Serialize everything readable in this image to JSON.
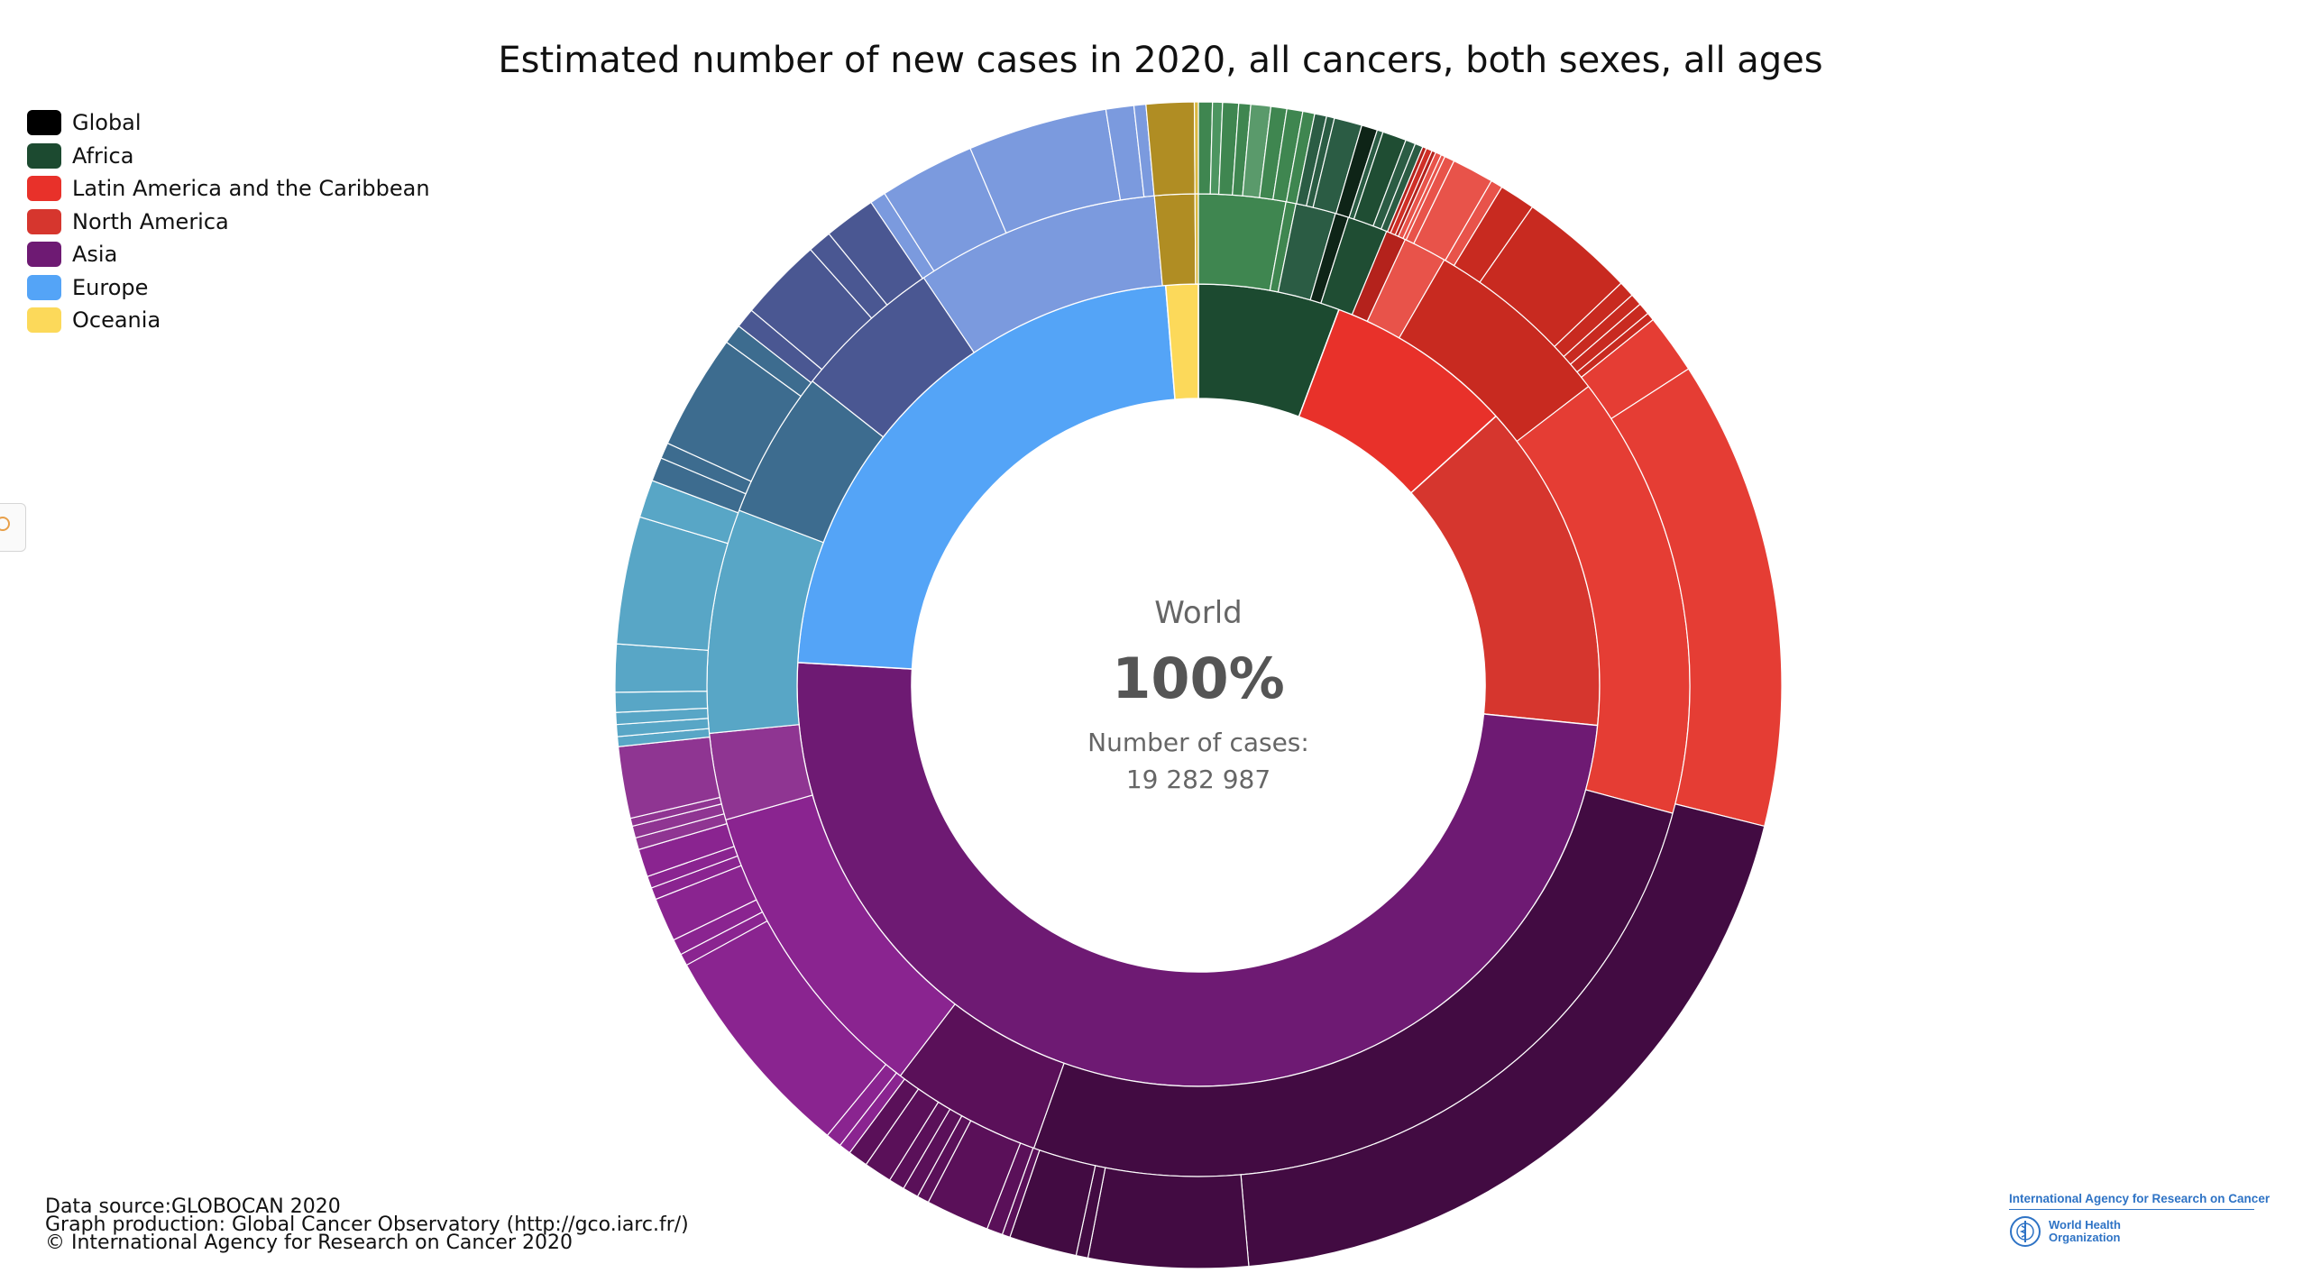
{
  "title": "Estimated number of new cases in 2020, all cancers, both sexes, all ages",
  "legend": [
    {
      "label": "Global",
      "color": "#000000"
    },
    {
      "label": "Africa",
      "color": "#1c4a30"
    },
    {
      "label": "Latin America and the Caribbean",
      "color": "#e8312a"
    },
    {
      "label": "North America",
      "color": "#d6362e"
    },
    {
      "label": "Asia",
      "color": "#6e1a73"
    },
    {
      "label": "Europe",
      "color": "#54a4f7"
    },
    {
      "label": "Oceania",
      "color": "#fcd95a"
    }
  ],
  "center": {
    "label": "World",
    "percent": "100%",
    "cases_label": "Number of cases:",
    "cases_value": "19 282 987"
  },
  "credits": {
    "line1": "Data source:GLOBOCAN 2020",
    "line2": "Graph production: Global Cancer Observatory (http://gco.iarc.fr/)",
    "line3": "© International Agency for Research on Cancer 2020"
  },
  "logos": {
    "iarc": "International Agency for Research on Cancer",
    "who_line1": "World Health",
    "who_line2": "Organization"
  },
  "icons": {
    "side_tab": "expand-icon",
    "who": "who-emblem-icon"
  },
  "chart_data": {
    "type": "sunburst",
    "title": "Estimated number of new cases in 2020, all cancers, both sexes, all ages",
    "root": {
      "name": "World",
      "percent": 100,
      "cases": 19282987
    },
    "rings": [
      {
        "level": 1,
        "segments": [
          {
            "name": "Africa",
            "percent": 5.7,
            "color": "#1c4a30"
          },
          {
            "name": "Latin America and the Caribbean",
            "percent": 7.6,
            "color": "#e8312a"
          },
          {
            "name": "North America",
            "percent": 13.3,
            "color": "#d6362e"
          },
          {
            "name": "Asia",
            "percent": 49.3,
            "color": "#6e1a73"
          },
          {
            "name": "Europe",
            "percent": 22.8,
            "color": "#54a4f7"
          },
          {
            "name": "Oceania",
            "percent": 1.3,
            "color": "#fcd95a"
          }
        ]
      },
      {
        "level": 2,
        "segments": [
          {
            "parent": "Africa",
            "percent": 2.6,
            "color": "#3f8650"
          },
          {
            "parent": "Africa",
            "percent": 0.3,
            "color": "#3f8650"
          },
          {
            "parent": "Africa",
            "percent": 1.2,
            "color": "#2b5c44"
          },
          {
            "parent": "Africa",
            "percent": 0.4,
            "color": "#0e2417"
          },
          {
            "parent": "Africa",
            "percent": 1.2,
            "color": "#1f4d33"
          },
          {
            "parent": "Latin America and the Caribbean",
            "percent": 0.6,
            "color": "#b4221c"
          },
          {
            "parent": "Latin America and the Caribbean",
            "percent": 1.3,
            "color": "#e8534a"
          },
          {
            "parent": "Latin America and the Caribbean",
            "percent": 5.7,
            "color": "#c82a20"
          },
          {
            "parent": "North America",
            "percent": 13.3,
            "color": "#e53d34"
          },
          {
            "parent": "Asia",
            "percent": 23.9,
            "color": "#420b42"
          },
          {
            "parent": "Asia",
            "percent": 4.5,
            "color": "#5a1059"
          },
          {
            "parent": "Asia",
            "percent": 9.3,
            "color": "#8a2490"
          },
          {
            "parent": "Asia",
            "percent": 2.6,
            "color": "#8f3592"
          },
          {
            "parent": "Europe",
            "percent": 6.7,
            "color": "#58a6c6"
          },
          {
            "parent": "Europe",
            "percent": 4.4,
            "color": "#3d6c8f"
          },
          {
            "parent": "Europe",
            "percent": 4.5,
            "color": "#4a5792"
          },
          {
            "parent": "Europe",
            "percent": 7.3,
            "color": "#7b9ade"
          },
          {
            "parent": "Oceania",
            "percent": 1.2,
            "color": "#b08d23"
          },
          {
            "parent": "Oceania",
            "percent": 0.1,
            "color": "#d9b840"
          }
        ]
      },
      {
        "level": 3,
        "segments": [
          {
            "parent": "Africa",
            "percent": 0.35,
            "color": "#3f8650"
          },
          {
            "parent": "Africa",
            "percent": 0.25,
            "color": "#4c9560"
          },
          {
            "parent": "Africa",
            "percent": 0.4,
            "color": "#3f8650"
          },
          {
            "parent": "Africa",
            "percent": 0.3,
            "color": "#3f8650"
          },
          {
            "parent": "Africa",
            "percent": 0.5,
            "color": "#5a9a6b"
          },
          {
            "parent": "Africa",
            "percent": 0.4,
            "color": "#3f8650"
          },
          {
            "parent": "Africa",
            "percent": 0.4,
            "color": "#3f8650"
          },
          {
            "parent": "Africa",
            "percent": 0.3,
            "color": "#3f8650"
          },
          {
            "parent": "Africa",
            "percent": 0.3,
            "color": "#2b5c44"
          },
          {
            "parent": "Africa",
            "percent": 0.2,
            "color": "#2b5c44"
          },
          {
            "parent": "Africa",
            "percent": 0.7,
            "color": "#2b5c44"
          },
          {
            "parent": "Africa",
            "percent": 0.4,
            "color": "#0e2417"
          },
          {
            "parent": "Africa",
            "percent": 0.15,
            "color": "#2b5c44"
          },
          {
            "parent": "Africa",
            "percent": 0.6,
            "color": "#1f4d33"
          },
          {
            "parent": "Africa",
            "percent": 0.25,
            "color": "#2b5c44"
          },
          {
            "parent": "Africa",
            "percent": 0.2,
            "color": "#2b5c44"
          },
          {
            "parent": "Latin America and the Caribbean",
            "percent": 0.1,
            "color": "#b4221c"
          },
          {
            "parent": "Latin America and the Caribbean",
            "percent": 0.15,
            "color": "#cf2f26"
          },
          {
            "parent": "Latin America and the Caribbean",
            "percent": 0.1,
            "color": "#b4221c"
          },
          {
            "parent": "Latin America and the Caribbean",
            "percent": 0.15,
            "color": "#e8534a"
          },
          {
            "parent": "Latin America and the Caribbean",
            "percent": 0.1,
            "color": "#e8534a"
          },
          {
            "parent": "Latin America and the Caribbean",
            "percent": 0.25,
            "color": "#e8534a"
          },
          {
            "parent": "Latin America and the Caribbean",
            "percent": 1.05,
            "color": "#e8534a"
          },
          {
            "parent": "Latin America and the Caribbean",
            "percent": 0.3,
            "color": "#e8534a"
          },
          {
            "parent": "Latin America and the Caribbean",
            "percent": 0.9,
            "color": "#c82a20"
          },
          {
            "parent": "Latin America and the Caribbean",
            "percent": 2.9,
            "color": "#c82a20"
          },
          {
            "parent": "Latin America and the Caribbean",
            "percent": 0.4,
            "color": "#c82a20"
          },
          {
            "parent": "Latin America and the Caribbean",
            "percent": 0.3,
            "color": "#c82a20"
          },
          {
            "parent": "Latin America and the Caribbean",
            "percent": 0.3,
            "color": "#c82a20"
          },
          {
            "parent": "Latin America and the Caribbean",
            "percent": 0.2,
            "color": "#c82a20"
          },
          {
            "parent": "North America",
            "percent": 1.5,
            "color": "#e53d34"
          },
          {
            "parent": "North America",
            "percent": 11.8,
            "color": "#e53d34"
          },
          {
            "parent": "Asia",
            "percent": 17.9,
            "color": "#420b42"
          },
          {
            "parent": "Asia",
            "percent": 4.0,
            "color": "#420b42"
          },
          {
            "parent": "Asia",
            "percent": 0.3,
            "color": "#420b42"
          },
          {
            "parent": "Asia",
            "percent": 1.7,
            "color": "#420b42"
          },
          {
            "parent": "Asia",
            "percent": 0.2,
            "color": "#5a1059"
          },
          {
            "parent": "Asia",
            "percent": 0.4,
            "color": "#5a1059"
          },
          {
            "parent": "Asia",
            "percent": 1.6,
            "color": "#5a1059"
          },
          {
            "parent": "Asia",
            "percent": 0.3,
            "color": "#5a1059"
          },
          {
            "parent": "Asia",
            "percent": 0.4,
            "color": "#5a1059"
          },
          {
            "parent": "Asia",
            "percent": 0.4,
            "color": "#5a1059"
          },
          {
            "parent": "Asia",
            "percent": 0.7,
            "color": "#5a1059"
          },
          {
            "parent": "Asia",
            "percent": 0.5,
            "color": "#5a1059"
          },
          {
            "parent": "Asia",
            "percent": 0.3,
            "color": "#8a2490"
          },
          {
            "parent": "Asia",
            "percent": 0.4,
            "color": "#8a2490"
          },
          {
            "parent": "Asia",
            "percent": 5.5,
            "color": "#8a2490"
          },
          {
            "parent": "Asia",
            "percent": 0.3,
            "color": "#8a2490"
          },
          {
            "parent": "Asia",
            "percent": 0.4,
            "color": "#8a2490"
          },
          {
            "parent": "Asia",
            "percent": 1.1,
            "color": "#8a2490"
          },
          {
            "parent": "Asia",
            "percent": 0.3,
            "color": "#8a2490"
          },
          {
            "parent": "Asia",
            "percent": 0.3,
            "color": "#8a2490"
          },
          {
            "parent": "Asia",
            "percent": 0.7,
            "color": "#8a2490"
          },
          {
            "parent": "Asia",
            "percent": 0.3,
            "color": "#8f3592"
          },
          {
            "parent": "Asia",
            "percent": 0.3,
            "color": "#8f3592"
          },
          {
            "parent": "Asia",
            "percent": 0.2,
            "color": "#8f3592"
          },
          {
            "parent": "Asia",
            "percent": 1.8,
            "color": "#8f3592"
          },
          {
            "parent": "Europe",
            "percent": 0.25,
            "color": "#58a6c6"
          },
          {
            "parent": "Europe",
            "percent": 0.3,
            "color": "#58a6c6"
          },
          {
            "parent": "Europe",
            "percent": 0.3,
            "color": "#58a6c6"
          },
          {
            "parent": "Europe",
            "percent": 0.5,
            "color": "#58a6c6"
          },
          {
            "parent": "Europe",
            "percent": 1.2,
            "color": "#58a6c6"
          },
          {
            "parent": "Europe",
            "percent": 3.2,
            "color": "#58a6c6"
          },
          {
            "parent": "Europe",
            "percent": 0.95,
            "color": "#58a6c6"
          },
          {
            "parent": "Europe",
            "percent": 0.6,
            "color": "#3d6c8f"
          },
          {
            "parent": "Europe",
            "percent": 0.4,
            "color": "#3d6c8f"
          },
          {
            "parent": "Europe",
            "percent": 2.9,
            "color": "#3d6c8f"
          },
          {
            "parent": "Europe",
            "percent": 0.5,
            "color": "#3d6c8f"
          },
          {
            "parent": "Europe",
            "percent": 0.5,
            "color": "#4a5792"
          },
          {
            "parent": "Europe",
            "percent": 2.1,
            "color": "#4a5792"
          },
          {
            "parent": "Europe",
            "percent": 0.6,
            "color": "#4a5792"
          },
          {
            "parent": "Europe",
            "percent": 1.3,
            "color": "#4a5792"
          },
          {
            "parent": "Europe",
            "percent": 0.4,
            "color": "#7b9ade"
          },
          {
            "parent": "Europe",
            "percent": 2.4,
            "color": "#7b9ade"
          },
          {
            "parent": "Europe",
            "percent": 3.5,
            "color": "#7b9ade"
          },
          {
            "parent": "Europe",
            "percent": 0.7,
            "color": "#7b9ade"
          },
          {
            "parent": "Europe",
            "percent": 0.3,
            "color": "#7b9ade"
          },
          {
            "parent": "Oceania",
            "percent": 1.2,
            "color": "#b08d23"
          },
          {
            "parent": "Oceania",
            "percent": 0.1,
            "color": "#d9b840"
          }
        ]
      }
    ]
  }
}
